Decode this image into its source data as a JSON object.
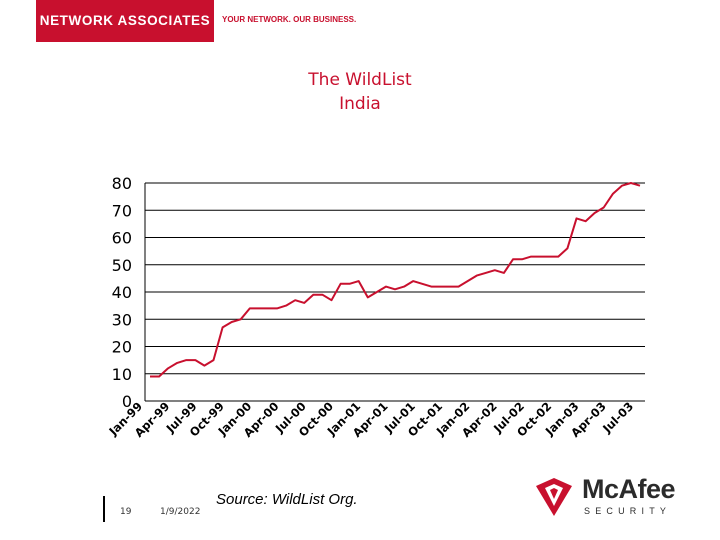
{
  "header": {
    "brand": "NETWORK ASSOCIATES",
    "tagline": "YOUR NETWORK. OUR BUSINESS.",
    "brand_color": "#c8102e"
  },
  "footer": {
    "slide_number": "19",
    "date": "1/9/2022",
    "source": "Source: WildList Org.",
    "logo_name": "McAfee",
    "logo_sub": "SECURITY",
    "logo_icon": "mcafee-shield-icon"
  },
  "chart_data": {
    "type": "line",
    "title": "The WildList",
    "subtitle": "India",
    "xlabel": "",
    "ylabel": "",
    "ylim": [
      0,
      80
    ],
    "yticks": [
      0,
      10,
      20,
      30,
      40,
      50,
      60,
      70,
      80
    ],
    "grid": true,
    "legend": "none",
    "line_color": "#c8102e",
    "x_tick_labels": [
      "Jan-99",
      "Apr-99",
      "Jul-99",
      "Oct-99",
      "Jan-00",
      "Apr-00",
      "Jul-00",
      "Oct-00",
      "Jan-01",
      "Apr-01",
      "Jul-01",
      "Oct-01",
      "Jan-02",
      "Apr-02",
      "Jul-02",
      "Oct-02",
      "Jan-03",
      "Apr-03",
      "Jul-03"
    ],
    "series": [
      {
        "name": "",
        "values": [
          9,
          9,
          12,
          14,
          15,
          15,
          13,
          15,
          27,
          29,
          30,
          34,
          34,
          34,
          34,
          35,
          37,
          36,
          39,
          39,
          37,
          43,
          43,
          44,
          38,
          40,
          42,
          41,
          42,
          44,
          43,
          42,
          42,
          42,
          42,
          44,
          46,
          47,
          48,
          47,
          52,
          52,
          53,
          53,
          53,
          53,
          56,
          67,
          66,
          69,
          71,
          76,
          79,
          80,
          79
        ]
      }
    ]
  }
}
